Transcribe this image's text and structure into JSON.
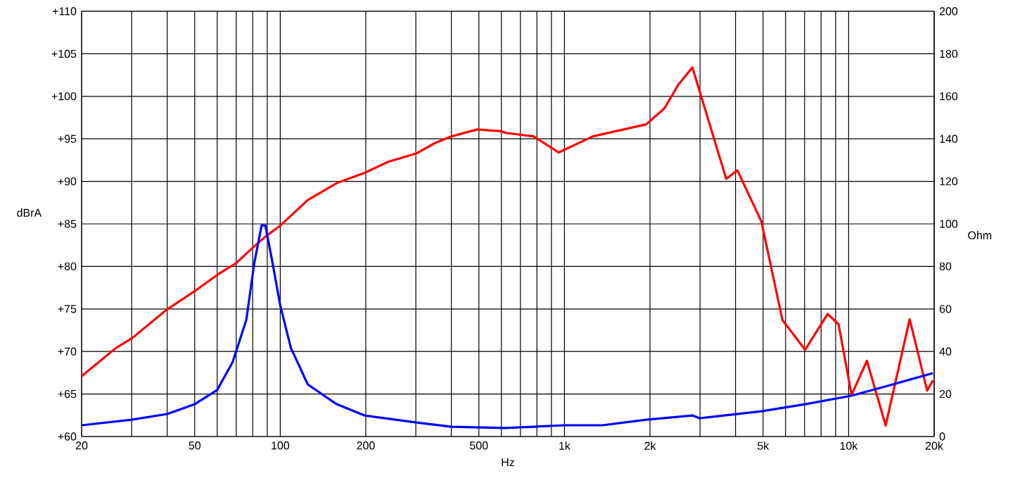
{
  "chart_data": {
    "type": "line",
    "xlabel": "Hz",
    "ylabel": "dBrA",
    "y2label": "Ohm",
    "log": "x",
    "grid": true,
    "xlim": [
      20,
      20000
    ],
    "xticks": [
      20,
      {
        "value": 30,
        "label": null
      },
      {
        "value": 40,
        "label": null
      },
      50,
      {
        "value": 60,
        "label": null
      },
      {
        "value": 70,
        "label": null
      },
      {
        "value": 80,
        "label": null
      },
      {
        "value": 90,
        "label": null
      },
      100,
      200,
      {
        "value": 300,
        "label": null
      },
      {
        "value": 400,
        "label": null
      },
      500,
      {
        "value": 600,
        "label": null
      },
      {
        "value": 700,
        "label": null
      },
      {
        "value": 800,
        "label": null
      },
      {
        "value": 900,
        "label": null
      },
      {
        "value": 1000,
        "label": "1k"
      },
      {
        "value": 2000,
        "label": "2k"
      },
      {
        "value": 3000,
        "label": null
      },
      {
        "value": 4000,
        "label": null
      },
      {
        "value": 5000,
        "label": "5k"
      },
      {
        "value": 6000,
        "label": null
      },
      {
        "value": 7000,
        "label": null
      },
      {
        "value": 8000,
        "label": null
      },
      {
        "value": 9000,
        "label": null
      },
      {
        "value": 10000,
        "label": "10k"
      },
      {
        "value": 20000,
        "label": "20k"
      }
    ],
    "ylim": [
      60,
      110
    ],
    "yticks": [
      {
        "value": 60,
        "label": "+60"
      },
      {
        "value": 65,
        "label": "+65"
      },
      {
        "value": 70,
        "label": "+70"
      },
      {
        "value": 75,
        "label": "+75"
      },
      {
        "value": 80,
        "label": "+80"
      },
      {
        "value": 85,
        "label": "+85"
      },
      {
        "value": 90,
        "label": "+90"
      },
      {
        "value": 95,
        "label": "+95"
      },
      {
        "value": 100,
        "label": "+100"
      },
      {
        "value": 105,
        "label": "+105"
      },
      {
        "value": 110,
        "label": "+110"
      }
    ],
    "y2lim": [
      0,
      200
    ],
    "y2ticks": [
      0,
      20,
      40,
      60,
      80,
      100,
      120,
      140,
      160,
      180,
      200
    ],
    "series": [
      {
        "color": "#ff0000",
        "x": [
          20,
          26.4,
          30.2,
          39.8,
          50,
          60,
          70,
          80,
          88.6,
          100,
          125,
          158,
          198,
          240,
          302,
          350,
          401,
          493,
          599,
          620,
          778,
          955,
          1260,
          1940,
          2250,
          2520,
          2820,
          3710,
          4060,
          4930,
          5850,
          7030,
          8430,
          9220,
          10240,
          11600,
          13500,
          16400,
          18900,
          19800
        ],
        "values": [
          67.1,
          70.4,
          71.6,
          74.9,
          77.1,
          79.0,
          80.4,
          82.2,
          83.5,
          84.8,
          87.8,
          89.8,
          91.0,
          92.3,
          93.3,
          94.5,
          95.3,
          96.1,
          95.9,
          95.7,
          95.3,
          93.4,
          95.3,
          96.7,
          98.6,
          101.4,
          103.4,
          90.3,
          91.3,
          85.3,
          73.7,
          70.2,
          74.4,
          73.2,
          64.9,
          68.9,
          61.3,
          73.8,
          65.4,
          66.6
        ]
      },
      {
        "color": "#0000ff",
        "axis": "y2",
        "x": [
          20,
          30,
          40,
          50,
          60,
          68,
          76,
          81,
          86,
          88.6,
          94,
          100,
          109,
          125,
          158,
          198,
          302,
          401,
          620,
          1000,
          1360,
          1940,
          2820,
          2990,
          4930,
          7030,
          10240,
          14300,
          19800
        ],
        "values": [
          5.3,
          7.9,
          10.6,
          15.2,
          21.9,
          35,
          55,
          81.5,
          99.3,
          99.3,
          81.5,
          61.6,
          41.7,
          24.5,
          15.2,
          9.9,
          6.6,
          4.6,
          4,
          5.3,
          5.3,
          7.9,
          9.9,
          8.6,
          11.9,
          15.2,
          19.2,
          24.5,
          29.8
        ]
      }
    ]
  }
}
